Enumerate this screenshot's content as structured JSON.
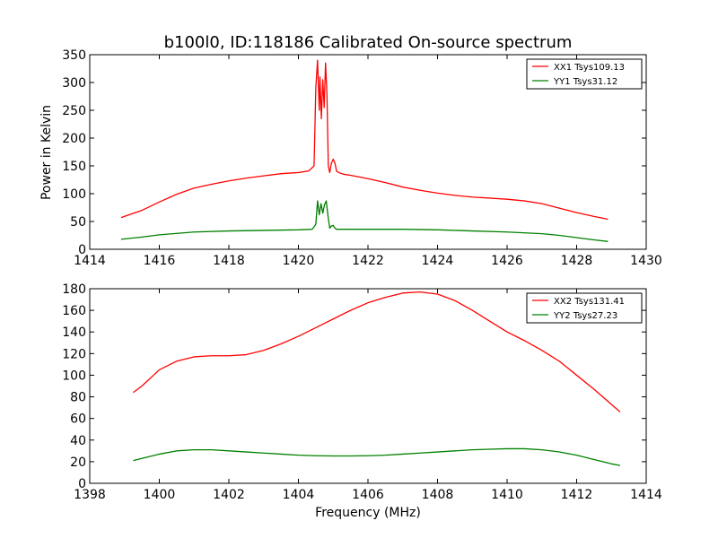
{
  "figure": {
    "title": "b100l0, ID:118186 Calibrated On-source spectrum",
    "ylabel": "Power in Kelvin",
    "xlabel": "Frequency (MHz)"
  },
  "chart_data": [
    {
      "type": "line",
      "title": "b100l0, ID:118186 Calibrated On-source spectrum",
      "xlabel": "",
      "ylabel": "Power in Kelvin",
      "xlim": [
        1414,
        1430
      ],
      "ylim": [
        0,
        350
      ],
      "xticks": [
        1414,
        1416,
        1418,
        1420,
        1422,
        1424,
        1426,
        1428,
        1430
      ],
      "yticks": [
        0,
        50,
        100,
        150,
        200,
        250,
        300,
        350
      ],
      "legend_position": "top-right",
      "series": [
        {
          "name": "XX1 Tsys109.13",
          "color": "#ff0000",
          "x": [
            1414.9,
            1415.5,
            1416.0,
            1416.5,
            1417.0,
            1417.5,
            1418.0,
            1418.5,
            1419.0,
            1419.5,
            1420.0,
            1420.3,
            1420.45,
            1420.5,
            1420.55,
            1420.6,
            1420.62,
            1420.66,
            1420.7,
            1420.74,
            1420.78,
            1420.82,
            1420.86,
            1420.9,
            1420.95,
            1421.0,
            1421.05,
            1421.1,
            1421.2,
            1421.3,
            1421.5,
            1422.0,
            1422.5,
            1423.0,
            1423.5,
            1424.0,
            1424.5,
            1425.0,
            1425.5,
            1426.0,
            1426.5,
            1427.0,
            1427.5,
            1428.0,
            1428.5,
            1428.9
          ],
          "y": [
            57,
            70,
            85,
            99,
            110,
            117,
            123,
            128,
            132,
            136,
            138,
            141,
            150,
            290,
            340,
            250,
            310,
            235,
            305,
            255,
            335,
            280,
            150,
            138,
            155,
            162,
            155,
            140,
            137,
            135,
            133,
            127,
            120,
            112,
            106,
            101,
            97,
            94,
            92,
            90,
            87,
            82,
            74,
            66,
            59,
            54
          ]
        },
        {
          "name": "YY1 Tsys31.12",
          "color": "#008000",
          "x": [
            1414.9,
            1415.5,
            1416.0,
            1417.0,
            1418.0,
            1419.0,
            1420.0,
            1420.4,
            1420.5,
            1420.55,
            1420.6,
            1420.65,
            1420.7,
            1420.75,
            1420.8,
            1420.85,
            1420.9,
            1420.95,
            1421.0,
            1421.05,
            1421.1,
            1421.2,
            1422.0,
            1423.0,
            1424.0,
            1425.0,
            1426.0,
            1427.0,
            1427.5,
            1428.0,
            1428.5,
            1428.9
          ],
          "y": [
            18,
            22,
            26,
            31,
            33,
            34,
            35,
            36,
            45,
            87,
            62,
            82,
            65,
            80,
            87,
            60,
            38,
            42,
            43,
            38,
            36,
            36,
            36,
            36,
            35,
            33,
            31,
            28,
            25,
            21,
            17,
            14
          ]
        }
      ]
    },
    {
      "type": "line",
      "title": "",
      "xlabel": "Frequency (MHz)",
      "ylabel": "",
      "xlim": [
        1398,
        1414
      ],
      "ylim": [
        0,
        180
      ],
      "xticks": [
        1398,
        1400,
        1402,
        1404,
        1406,
        1408,
        1410,
        1412,
        1414
      ],
      "yticks": [
        0,
        20,
        40,
        60,
        80,
        100,
        120,
        140,
        160,
        180
      ],
      "legend_position": "top-right",
      "series": [
        {
          "name": "XX2 Tsys131.41",
          "color": "#ff0000",
          "x": [
            1399.25,
            1399.5,
            1400.0,
            1400.5,
            1401.0,
            1401.5,
            1402.0,
            1402.5,
            1403.0,
            1403.5,
            1404.0,
            1404.5,
            1405.0,
            1405.5,
            1406.0,
            1406.5,
            1407.0,
            1407.5,
            1408.0,
            1408.5,
            1409.0,
            1409.5,
            1410.0,
            1410.5,
            1411.0,
            1411.5,
            1412.0,
            1412.5,
            1413.0,
            1413.25
          ],
          "y": [
            84,
            90,
            105,
            113,
            117,
            118,
            118,
            119,
            123,
            129,
            136,
            144,
            152,
            160,
            167,
            172,
            176,
            177,
            175,
            169,
            160,
            150,
            140,
            132,
            123,
            113,
            100,
            87,
            73,
            66
          ]
        },
        {
          "name": "YY2 Tsys27.23",
          "color": "#008000",
          "x": [
            1399.25,
            1399.5,
            1400.0,
            1400.5,
            1401.0,
            1401.5,
            1402.0,
            1402.5,
            1403.0,
            1403.5,
            1404.0,
            1404.5,
            1405.0,
            1405.5,
            1406.0,
            1406.5,
            1407.0,
            1407.5,
            1408.0,
            1408.5,
            1409.0,
            1409.5,
            1410.0,
            1410.5,
            1411.0,
            1411.5,
            1412.0,
            1412.5,
            1413.0,
            1413.25
          ],
          "y": [
            21,
            23,
            27,
            30,
            31,
            31,
            30,
            29,
            28,
            27,
            26,
            25.5,
            25.3,
            25.3,
            25.5,
            26,
            27,
            28,
            29,
            30,
            31,
            31.5,
            32,
            32,
            31,
            29,
            26,
            22,
            18,
            16.5
          ]
        }
      ]
    }
  ]
}
